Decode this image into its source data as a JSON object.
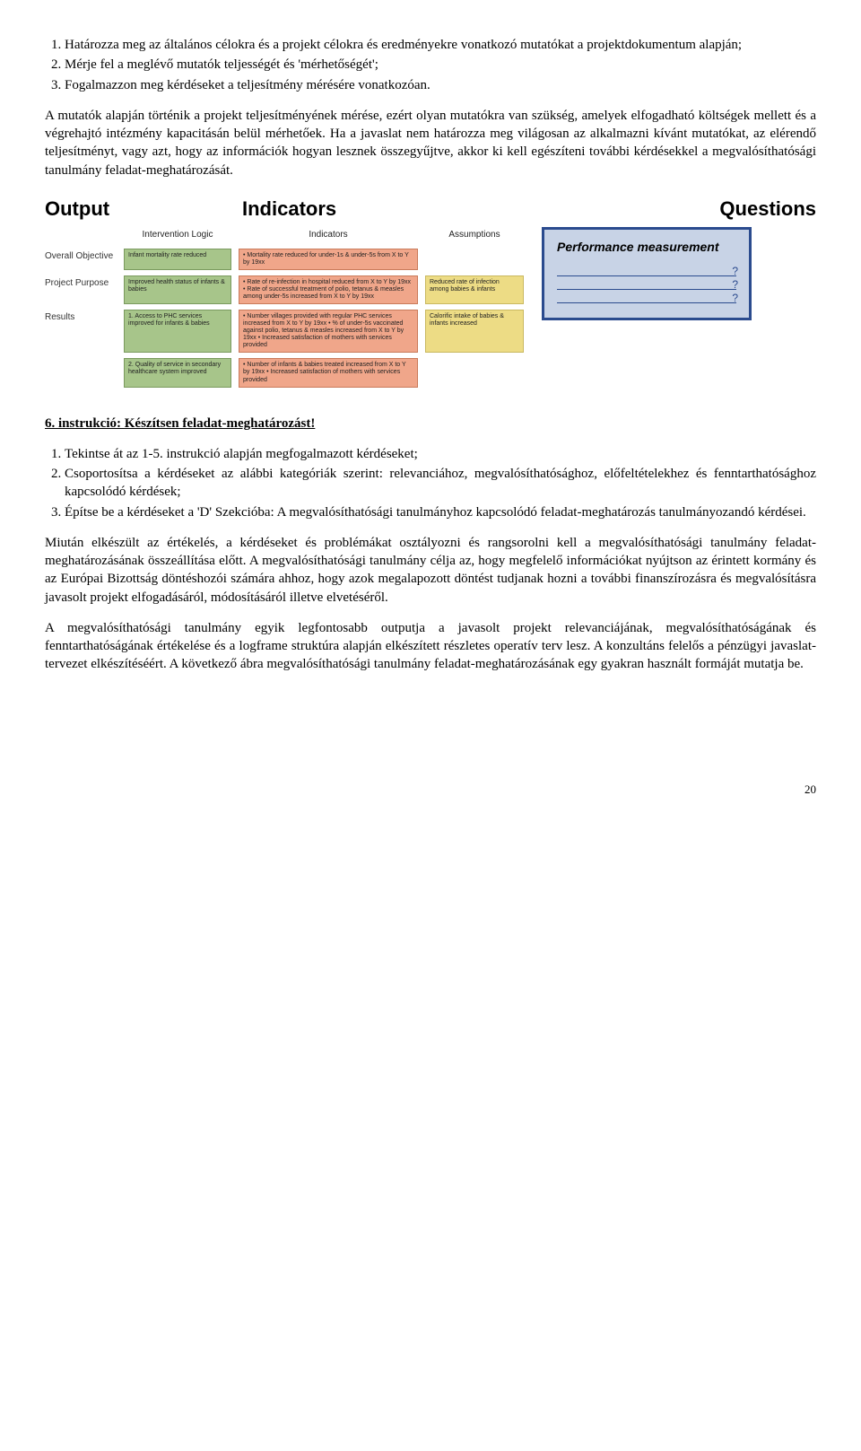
{
  "intro_list": {
    "items": [
      "Határozza meg az általános célokra és a projekt célokra és eredményekre vonatkozó mutatókat a projektdokumentum alapján;",
      "Mérje fel a meglévő mutatók teljességét és 'mérhetőségét';",
      "Fogalmazzon meg kérdéseket a teljesítmény mérésére vonatkozóan."
    ]
  },
  "para1": "A mutatók alapján történik a projekt teljesítményének mérése, ezért olyan mutatókra van szükség, amelyek elfogadható költségek mellett és a végrehajtó intézmény kapacitásán belül mérhetőek. Ha a javaslat nem határozza meg világosan az alkalmazni kívánt mutatókat, az elérendő teljesítményt, vagy azt, hogy az információk hogyan lesznek összegyűjtve, akkor ki kell egészíteni további kérdésekkel a megvalósíthatósági tanulmány feladat-meghatározását.",
  "diagram": {
    "headings": {
      "output": "Output",
      "indicators": "Indicators",
      "questions": "Questions"
    },
    "col_headers": [
      "Intervention Logic",
      "Indicators",
      "Assumptions"
    ],
    "rows": [
      {
        "label": "Overall Objective",
        "logic": "Infant mortality rate reduced",
        "indicators": "• Mortality rate reduced for under-1s & under-5s from X to Y by 19xx",
        "assumptions": ""
      },
      {
        "label": "Project Purpose",
        "logic": "Improved health status of infants & babies",
        "indicators": "• Rate of re-infection in hospital reduced from X to Y by 19xx\n• Rate of successful treatment of polio, tetanus & measles among under-5s increased from X to Y by 19xx",
        "assumptions": "Reduced rate of infection among babies & infants"
      },
      {
        "label": "Results",
        "logic": "1. Access to PHC services improved for infants & babies",
        "indicators": "• Number villages provided with regular PHC services increased from X to Y by 19xx\n• % of under-5s vaccinated against polio, tetanus & measles increased from X to Y by 19xx\n• Increased satisfaction of mothers with services provided",
        "assumptions": "Calorific intake of babies & infants increased"
      },
      {
        "label": "",
        "logic": "2. Quality of service in secondary healthcare system improved",
        "indicators": "• Number of infants & babies treated increased from X to Y by 19xx\n• Increased satisfaction of mothers with services provided",
        "assumptions": ""
      }
    ],
    "qbox_title": "Performance measurement"
  },
  "instr6": {
    "heading": "6. instrukció: Készítsen feladat-meghatározást!",
    "items": [
      "Tekintse át az 1-5. instrukció alapján megfogalmazott kérdéseket;",
      "Csoportosítsa a kérdéseket az alábbi kategóriák szerint: relevanciához, megvalósíthatósághoz, előfeltételekhez és fenntarthatósághoz kapcsolódó kérdések;",
      "Építse be a kérdéseket a 'D' Szekcióba: A megvalósíthatósági tanulmányhoz kapcsolódó feladat-meghatározás tanulmányozandó kérdései."
    ]
  },
  "para2": "Miután elkészült az értékelés, a kérdéseket és problémákat osztályozni és rangsorolni kell a megvalósíthatósági tanulmány feladat-meghatározásának összeállítása előtt. A megvalósíthatósági tanulmány célja az, hogy megfelelő információkat nyújtson az érintett kormány és az Európai Bizottság döntéshozói számára ahhoz, hogy azok megalapozott döntést tudjanak hozni a további finanszírozásra és megvalósításra javasolt projekt elfogadásáról, módosításáról illetve elvetéséről.",
  "para3": "A megvalósíthatósági tanulmány egyik legfontosabb outputja a javasolt projekt relevanciájának, megvalósíthatóságának és fenntarthatóságának értékelése és a logframe struktúra alapján elkészített részletes operatív terv lesz. A konzultáns felelős a pénzügyi javaslat-tervezet elkészítéséért. A következő ábra megvalósíthatósági tanulmány feladat-meghatározásának egy gyakran használt formáját mutatja be.",
  "pagenum": "20"
}
